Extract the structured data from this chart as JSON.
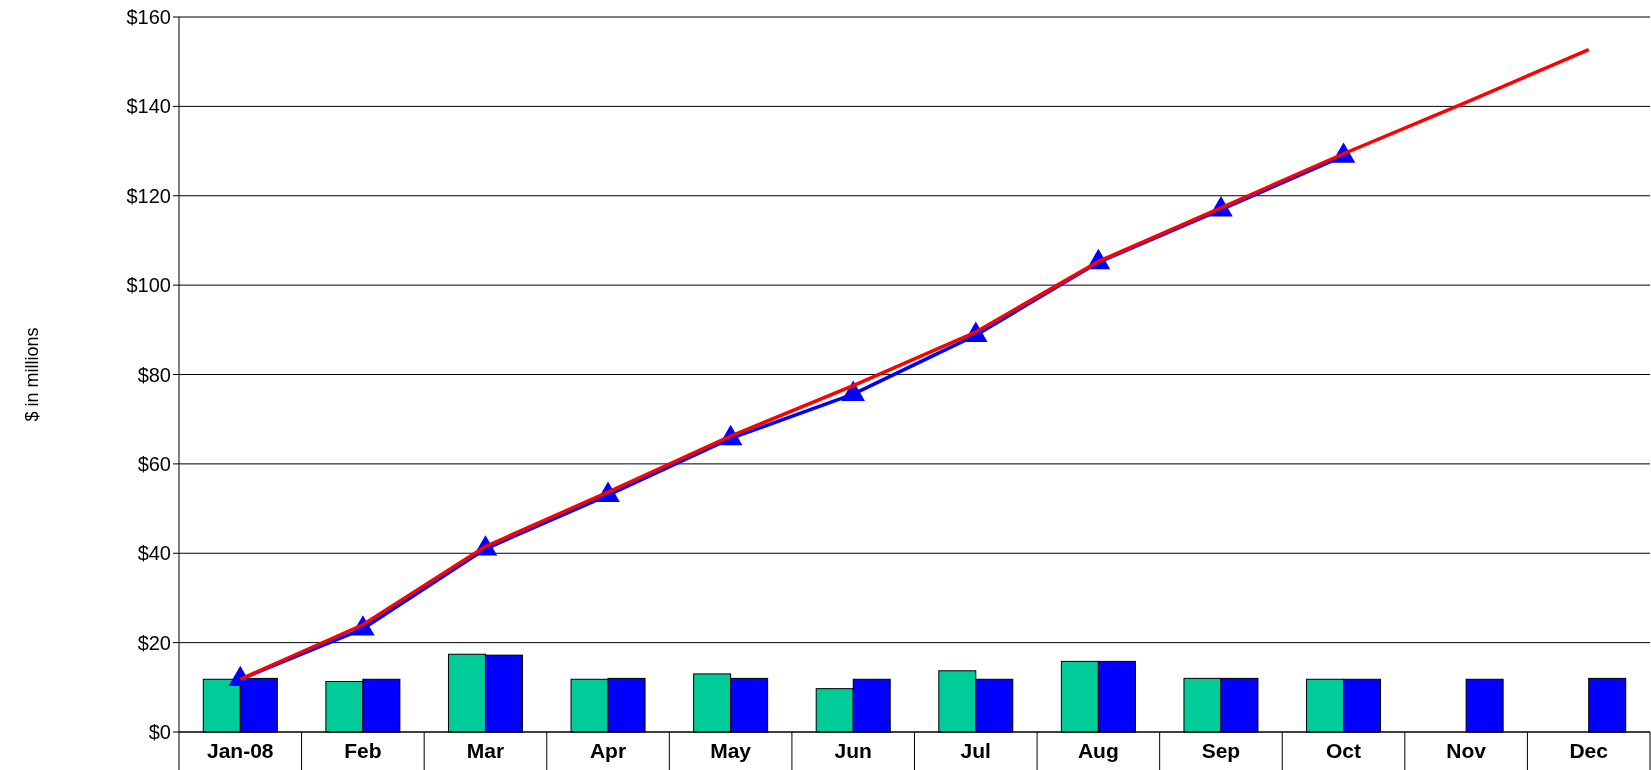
{
  "chart_data": {
    "type": "bar",
    "ylabel": "$ in millions",
    "categories": [
      "Jan-08",
      "Feb",
      "Mar",
      "Apr",
      "May",
      "Jun",
      "Jul",
      "Aug",
      "Sep",
      "Oct",
      "Nov",
      "Dec"
    ],
    "series": [
      {
        "color": "#00cc99",
        "values": [
          11.8,
          11.3,
          17.4,
          11.8,
          13.0,
          9.7,
          13.7,
          15.8,
          12.0,
          11.8,
          null,
          null
        ]
      },
      {
        "color": "#0000ff",
        "values": [
          12.0,
          11.8,
          17.2,
          12.0,
          12.0,
          11.8,
          11.8,
          15.8,
          12.0,
          11.8,
          11.8,
          12.0
        ]
      },
      {
        "type": "line",
        "color": "#0000ff",
        "marker": "triangle",
        "values": [
          11.8,
          23.1,
          41.0,
          53.0,
          65.7,
          75.6,
          88.8,
          105.1,
          116.9,
          128.9,
          null,
          null
        ]
      },
      {
        "type": "line",
        "color": "#ff0000",
        "marker": "none",
        "values": [
          11.8,
          24.0,
          41.5,
          53.7,
          66.2,
          77.5,
          89.5,
          105.3,
          117.3,
          129.4,
          140.9,
          152.7
        ]
      }
    ],
    "ylim": [
      0,
      160
    ],
    "yticks": [
      {
        "value": 0,
        "label": "$0"
      },
      {
        "value": 20,
        "label": "$20"
      },
      {
        "value": 40,
        "label": "$40"
      },
      {
        "value": 60,
        "label": "$60"
      },
      {
        "value": 80,
        "label": "$80"
      },
      {
        "value": 100,
        "label": "$100"
      },
      {
        "value": 120,
        "label": "$120"
      },
      {
        "value": 140,
        "label": "$140"
      },
      {
        "value": 160,
        "label": "$160"
      }
    ],
    "grid": "y"
  }
}
